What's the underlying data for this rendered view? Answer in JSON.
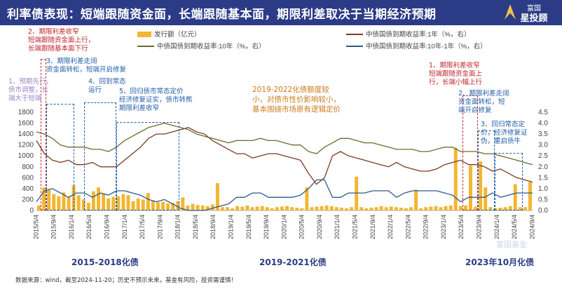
{
  "header": {
    "title": "利率债表现：短端跟随资金面，长端跟随基本面，期限利差取决于当期经济预期",
    "logo_line1": "富国",
    "logo_line2": "星投顾"
  },
  "annotations": [
    {
      "text": "2、期限利差收窄\n短端跟随资金面上行，\n长端跟随基本面下行",
      "color": "red"
    },
    {
      "text": "3、期限利差走阔\n资金面转松，短端开启修复",
      "color": "blue"
    },
    {
      "text": "1、预期先行，\n债市调整，长\n端大于短端",
      "color": "purple"
    },
    {
      "text": "4、回到常态\n运行",
      "color": "blue"
    },
    {
      "text": "5、回归债市常态定价\n经济修复证实，债市转熊\n期限利差收窄",
      "color": "blue"
    },
    {
      "text": "2019-2022化债额度较\n小，对债市性价影响较小，\n基本围绕市场原有逻辑定价",
      "color": "orange"
    },
    {
      "text": "1、期限利差收窄\n短端跟随资金面上\n行，长端小幅上行",
      "color": "red"
    },
    {
      "text": "2、期限利差走阔\n资金面转松，短\n端开启修复",
      "color": "blue"
    },
    {
      "text": "3、回归常态定\n价，经济修复证\n伪，重启债牛",
      "color": "blue"
    }
  ],
  "eras": [
    "2015-2018化债",
    "2019-2021化债",
    "2023年10月化债"
  ],
  "footer": "数据来源：wind，截至2024-11-20；历史不预示未来，基金有风险，投资需谨慎！",
  "watermark": "富国基金",
  "chart_data": {
    "type": "line",
    "title": "",
    "x_ticks": [
      "2015/5/4",
      "2015/9/4",
      "2016/1/4",
      "2016/5/4",
      "2016/9/4",
      "2017/1/4",
      "2017/5/4",
      "2017/9/4",
      "2018/1/4",
      "2018/5/4",
      "2018/9/4",
      "2019/1/4",
      "2019/5/4",
      "2019/9/4",
      "2020/1/4",
      "2020/5/4",
      "2020/9/4",
      "2021/1/4",
      "2021/5/4",
      "2021/9/4",
      "2022/1/4",
      "2022/5/4",
      "2022/9/4",
      "2023/1/4",
      "2023/5/4",
      "2023/9/4",
      "2024/1/4",
      "2024/5/4",
      "2024/9/4"
    ],
    "ylim_left": [
      0,
      1800
    ],
    "left_ticks": [
      0,
      200,
      400,
      600,
      800,
      1000,
      1200,
      1400,
      1600,
      1800
    ],
    "ylim_right": [
      0,
      4.5
    ],
    "right_ticks": [
      "0.0",
      "0.5",
      "1.0",
      "1.5",
      "2.0",
      "2.5",
      "3.0",
      "3.5",
      "4.0",
      "4.5"
    ],
    "grid": false,
    "legend_position": "top",
    "series": [
      {
        "name": "发行额（亿元）",
        "type": "bar",
        "axis": "left",
        "color": "#f2b632",
        "values": [
          90,
          420,
          380,
          300,
          260,
          330,
          250,
          460,
          280,
          200,
          140,
          350,
          420,
          310,
          220,
          250,
          260,
          300,
          280,
          170,
          220,
          200,
          320,
          180,
          150,
          160,
          130,
          140,
          170,
          240,
          90,
          120,
          100,
          90,
          80,
          110,
          500,
          60,
          60,
          40,
          80,
          70,
          90,
          60,
          70,
          80,
          60,
          40,
          60,
          70,
          80,
          60,
          50,
          40,
          420,
          60,
          70,
          80,
          90,
          80,
          60,
          50,
          40,
          60,
          620,
          60,
          40,
          50,
          60,
          80,
          60,
          70,
          60,
          50,
          40,
          60,
          380,
          40,
          60,
          70,
          80,
          60,
          80,
          90,
          1150,
          80,
          90,
          820,
          70,
          900,
          420,
          60,
          40,
          50,
          60,
          80,
          480,
          60,
          60,
          520
        ]
      },
      {
        "name": "中债国债到期收益率:1年（%，右）",
        "type": "line",
        "axis": "right",
        "color": "#7a3b24",
        "values": [
          3.2,
          2.6,
          2.3,
          2.2,
          2.3,
          2.1,
          2.1,
          2.2,
          2.0,
          2.0,
          2.0,
          2.3,
          2.6,
          2.9,
          3.3,
          3.5,
          3.5,
          3.6,
          3.7,
          3.8,
          3.6,
          3.5,
          3.2,
          3.0,
          2.8,
          2.6,
          2.6,
          2.4,
          2.5,
          2.6,
          2.6,
          2.5,
          2.4,
          2.3,
          1.7,
          1.2,
          1.5,
          2.5,
          2.7,
          2.5,
          2.4,
          2.3,
          2.2,
          2.1,
          2.0,
          2.2,
          2.0,
          1.9,
          1.8,
          1.8,
          1.9,
          2.1,
          2.2,
          2.3,
          2.1,
          2.1,
          2.0,
          1.8,
          1.9,
          1.7,
          1.5,
          1.4,
          1.3
        ]
      },
      {
        "name": "中债国债到期收益率:10年（%，右）",
        "type": "line",
        "axis": "right",
        "color": "#6b6a2e",
        "values": [
          3.6,
          3.5,
          3.3,
          3.0,
          2.9,
          2.9,
          2.9,
          2.8,
          2.8,
          2.7,
          2.9,
          3.2,
          3.4,
          3.6,
          3.8,
          3.9,
          4.0,
          3.9,
          3.8,
          3.7,
          3.5,
          3.4,
          3.3,
          3.2,
          3.1,
          3.2,
          3.2,
          3.2,
          3.3,
          3.2,
          3.2,
          3.1,
          3.0,
          3.0,
          2.7,
          2.6,
          2.9,
          3.1,
          3.3,
          3.3,
          3.2,
          3.1,
          3.1,
          3.0,
          2.9,
          2.8,
          2.8,
          2.8,
          2.7,
          2.7,
          2.8,
          2.9,
          2.9,
          2.7,
          2.7,
          2.7,
          2.6,
          2.6,
          2.5,
          2.4,
          2.3,
          2.2,
          2.1
        ]
      },
      {
        "name": "中债国债到期收益率:10年-1年（%，右）",
        "type": "line",
        "axis": "right",
        "color": "#2e5a8a",
        "values": [
          0.4,
          0.9,
          1.0,
          0.8,
          0.6,
          0.8,
          0.8,
          0.6,
          0.8,
          0.7,
          0.9,
          0.9,
          0.8,
          0.7,
          0.5,
          0.4,
          0.5,
          0.3,
          0.1,
          -0.1,
          -0.1,
          -0.1,
          0.1,
          0.2,
          0.3,
          0.6,
          0.6,
          0.8,
          0.8,
          0.6,
          0.6,
          0.6,
          0.6,
          0.7,
          1.0,
          1.4,
          1.4,
          0.6,
          0.6,
          0.8,
          0.8,
          0.8,
          0.9,
          0.9,
          0.9,
          0.6,
          0.8,
          0.9,
          0.9,
          0.9,
          0.9,
          0.8,
          0.7,
          0.4,
          0.6,
          0.6,
          0.6,
          0.8,
          0.6,
          0.7,
          0.8,
          0.8,
          0.8
        ]
      }
    ]
  }
}
